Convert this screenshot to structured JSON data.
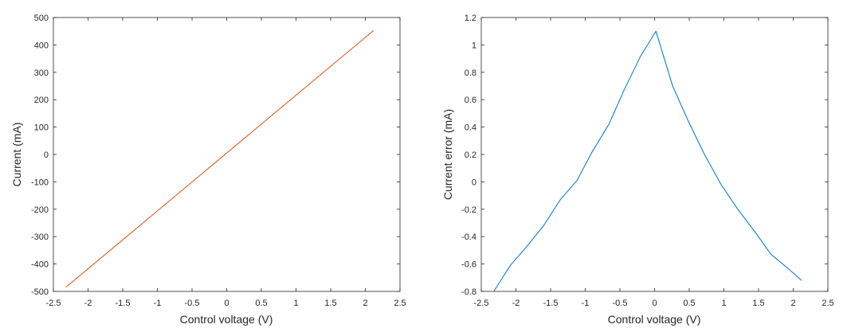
{
  "chart_data": [
    {
      "type": "line",
      "xlabel": "Control voltage (V)",
      "ylabel": "Current (mA)",
      "xlim": [
        -2.5,
        2.5
      ],
      "ylim": [
        -500,
        500
      ],
      "xticks": [
        "-2.5",
        "-2",
        "-1.5",
        "-1",
        "-0.5",
        "0",
        "0.5",
        "1",
        "1.5",
        "2",
        "2.5"
      ],
      "yticks": [
        "-500",
        "-400",
        "-300",
        "-200",
        "-100",
        "0",
        "100",
        "200",
        "300",
        "400",
        "500"
      ],
      "xtick_values": [
        -2.5,
        -2,
        -1.5,
        -1,
        -0.5,
        0,
        0.5,
        1,
        1.5,
        2,
        2.5
      ],
      "ytick_values": [
        -500,
        -400,
        -300,
        -200,
        -100,
        0,
        100,
        200,
        300,
        400,
        500
      ],
      "grid": false,
      "series": [
        {
          "color": "#D95319",
          "x": [
            -2.32,
            2.12
          ],
          "y": [
            -485,
            453
          ]
        }
      ]
    },
    {
      "type": "line",
      "xlabel": "Control voltage (V)",
      "ylabel": "Current error (mA)",
      "xlim": [
        -2.5,
        2.5
      ],
      "ylim": [
        -0.8,
        1.2
      ],
      "xticks": [
        "-2.5",
        "-2",
        "-1.5",
        "-1",
        "-0.5",
        "0",
        "0.5",
        "1",
        "1.5",
        "2",
        "2.5"
      ],
      "yticks": [
        "-0.8",
        "-0.6",
        "-0.4",
        "-0.2",
        "0",
        "0.2",
        "0.4",
        "0.6",
        "0.8",
        "1",
        "1.2"
      ],
      "xtick_values": [
        -2.5,
        -2,
        -1.5,
        -1,
        -0.5,
        0,
        0.5,
        1,
        1.5,
        2,
        2.5
      ],
      "ytick_values": [
        -0.8,
        -0.6,
        -0.4,
        -0.2,
        0,
        0.2,
        0.4,
        0.6,
        0.8,
        1,
        1.2
      ],
      "grid": false,
      "series": [
        {
          "color": "#0072BD",
          "x": [
            -2.32,
            -2.08,
            -1.84,
            -1.6,
            -1.36,
            -1.12,
            -0.9,
            -0.66,
            -0.44,
            -0.2,
            0.02,
            0.26,
            0.48,
            0.72,
            0.96,
            1.2,
            1.44,
            1.68,
            1.92,
            2.12
          ],
          "y": [
            -0.8,
            -0.61,
            -0.47,
            -0.32,
            -0.13,
            0.01,
            0.22,
            0.42,
            0.67,
            0.92,
            1.1,
            0.7,
            0.45,
            0.2,
            -0.02,
            -0.2,
            -0.36,
            -0.53,
            -0.63,
            -0.72
          ]
        }
      ]
    }
  ]
}
